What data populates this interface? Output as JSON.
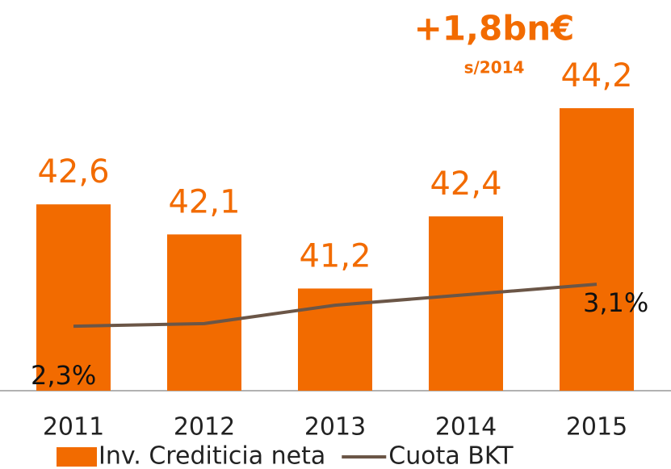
{
  "chart_data": {
    "type": "bar",
    "categories": [
      "2011",
      "2012",
      "2013",
      "2014",
      "2015"
    ],
    "ylim": [
      39.5,
      46
    ],
    "y2lim": [
      1.07,
      8.52
    ],
    "annotations": [
      "+1,8bn€",
      "s/2014"
    ],
    "series": [
      {
        "name": "Inv. Crediticia neta",
        "type": "bar",
        "color": "#f26b00",
        "values": [
          42.6,
          42.1,
          41.2,
          42.4,
          44.2
        ],
        "value_labels": [
          "42,6",
          "42,1",
          "41,2",
          "42,4",
          "44,2"
        ]
      },
      {
        "name": "Cuota BKT",
        "type": "line",
        "axis": "y2",
        "color": "#6b5647",
        "values": [
          2.3,
          2.35,
          2.7,
          2.9,
          3.1
        ],
        "value_labels": [
          "2,3%",
          null,
          null,
          null,
          "3,1%"
        ]
      }
    ]
  }
}
